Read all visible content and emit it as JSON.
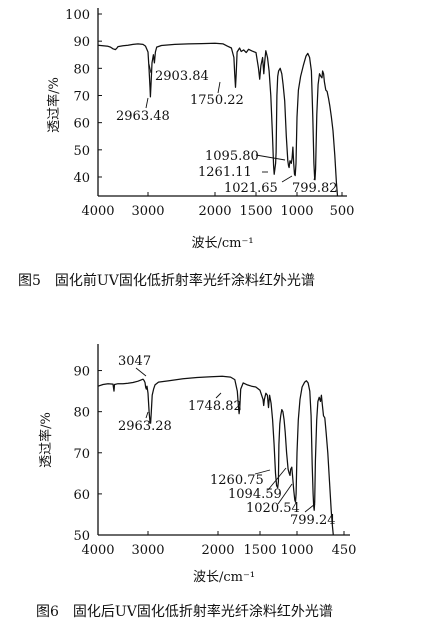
{
  "chart_data": [
    {
      "type": "line",
      "caption": "图5　固化前UV固化低折射率光纤涂料红外光谱",
      "xlabel": "波长/cm⁻¹",
      "ylabel": "透过率/%",
      "xlim": [
        4000,
        400
      ],
      "ylim": [
        33,
        100
      ],
      "x_ticks": [
        4000,
        3000,
        2000,
        1500,
        1000,
        500
      ],
      "x_tick_labels": [
        "4000",
        "3000",
        "2000",
        "1500",
        "1000",
        "500"
      ],
      "y_ticks": [
        40,
        50,
        60,
        70,
        80,
        90,
        100
      ],
      "series": [
        {
          "points": [
            [
              4000,
              88.5
            ],
            [
              3900,
              88.3
            ],
            [
              3800,
              88.1
            ],
            [
              3750,
              87.8
            ],
            [
              3700,
              87.2
            ],
            [
              3650,
              86.9
            ],
            [
              3620,
              87.5
            ],
            [
              3600,
              88
            ],
            [
              3500,
              88.3
            ],
            [
              3400,
              88.5
            ],
            [
              3300,
              88.8
            ],
            [
              3200,
              89
            ],
            [
              3100,
              88.8
            ],
            [
              3050,
              88.2
            ],
            [
              3000,
              86
            ],
            [
              2985,
              80
            ],
            [
              2970,
              73
            ],
            [
              2963.48,
              69.5
            ],
            [
              2955,
              74
            ],
            [
              2940,
              82
            ],
            [
              2920,
              85
            ],
            [
              2903.84,
              82
            ],
            [
              2890,
              86
            ],
            [
              2870,
              87.8
            ],
            [
              2800,
              88.4
            ],
            [
              2600,
              88.8
            ],
            [
              2400,
              89
            ],
            [
              2200,
              89.1
            ],
            [
              2000,
              89.2
            ],
            [
              1900,
              89
            ],
            [
              1850,
              88.2
            ],
            [
              1800,
              87.5
            ],
            [
              1770,
              84
            ],
            [
              1760,
              78
            ],
            [
              1750.22,
              73
            ],
            [
              1742,
              78
            ],
            [
              1730,
              86
            ],
            [
              1700,
              87.5
            ],
            [
              1680,
              86.2
            ],
            [
              1650,
              86.8
            ],
            [
              1620,
              85.8
            ],
            [
              1590,
              87
            ],
            [
              1550,
              86.4
            ],
            [
              1500,
              85.8
            ],
            [
              1470,
              80
            ],
            [
              1455,
              76
            ],
            [
              1440,
              81
            ],
            [
              1420,
              84
            ],
            [
              1405,
              78
            ],
            [
              1395,
              82
            ],
            [
              1380,
              86.5
            ],
            [
              1360,
              84
            ],
            [
              1340,
              79
            ],
            [
              1320,
              70
            ],
            [
              1300,
              56
            ],
            [
              1285,
              44
            ],
            [
              1278,
              41
            ],
            [
              1270,
              43
            ],
            [
              1261.11,
              45
            ],
            [
              1255,
              49
            ],
            [
              1245,
              70
            ],
            [
              1235,
              77
            ],
            [
              1225,
              79
            ],
            [
              1205,
              80
            ],
            [
              1185,
              78
            ],
            [
              1170,
              74
            ],
            [
              1150,
              68
            ],
            [
              1130,
              55
            ],
            [
              1112,
              46
            ],
            [
              1103,
              44
            ],
            [
              1095.8,
              43.5
            ],
            [
              1085,
              46
            ],
            [
              1070,
              45
            ],
            [
              1060,
              47
            ],
            [
              1050,
              51
            ],
            [
              1040,
              45
            ],
            [
              1030,
              41
            ],
            [
              1021.65,
              40.5
            ],
            [
              1012,
              45
            ],
            [
              1000,
              62
            ],
            [
              985,
              72
            ],
            [
              960,
              77
            ],
            [
              930,
              81
            ],
            [
              900,
              84.5
            ],
            [
              880,
              85.5
            ],
            [
              860,
              84
            ],
            [
              840,
              79
            ],
            [
              825,
              62
            ],
            [
              812,
              45
            ],
            [
              804,
              40
            ],
            [
              799.82,
              39
            ],
            [
              793,
              43
            ],
            [
              780,
              63
            ],
            [
              765,
              74
            ],
            [
              750,
              78
            ],
            [
              735,
              77
            ],
            [
              722,
              76.5
            ],
            [
              715,
              79
            ],
            [
              705,
              78
            ],
            [
              695,
              75
            ],
            [
              680,
              72
            ],
            [
              665,
              71.5
            ],
            [
              650,
              69
            ],
            [
              635,
              66
            ],
            [
              618,
              62
            ],
            [
              600,
              57
            ],
            [
              580,
              48
            ],
            [
              562,
              38
            ],
            [
              550,
              33
            ]
          ]
        }
      ],
      "annotations": [
        {
          "text": "2903.84",
          "x": 2903.84,
          "y": 82
        },
        {
          "text": "2963.48",
          "x": 2963.48,
          "y": 69.5
        },
        {
          "text": "1750.22",
          "x": 1750.22,
          "y": 73
        },
        {
          "text": "1095.80",
          "x": 1095.8,
          "y": 43.5
        },
        {
          "text": "1261.11",
          "x": 1261.11,
          "y": 45
        },
        {
          "text": "1021.65",
          "x": 1021.65,
          "y": 40.5
        },
        {
          "text": "799.82",
          "x": 799.82,
          "y": 39
        }
      ]
    },
    {
      "type": "line",
      "caption": "图6　固化后UV固化低折射率光纤涂料红外光谱",
      "xlabel": "波长/cm⁻¹",
      "ylabel": "透过率/%",
      "xlim": [
        4000,
        400
      ],
      "ylim": [
        50,
        95
      ],
      "x_ticks": [
        4000,
        3000,
        2000,
        1500,
        1000,
        450
      ],
      "x_tick_labels": [
        "4000",
        "3000",
        "2000",
        "1500",
        "1000",
        "450"
      ],
      "y_ticks": [
        50,
        60,
        70,
        80,
        90
      ],
      "series": [
        {
          "points": [
            [
              4000,
              86.2
            ],
            [
              3900,
              86.6
            ],
            [
              3800,
              86.8
            ],
            [
              3700,
              86.7
            ],
            [
              3680,
              85
            ],
            [
              3670,
              86.6
            ],
            [
              3600,
              86.8
            ],
            [
              3500,
              86.8
            ],
            [
              3400,
              86.9
            ],
            [
              3300,
              87.1
            ],
            [
              3200,
              87.4
            ],
            [
              3100,
              87.9
            ],
            [
              3080,
              87.6
            ],
            [
              3060,
              87.1
            ],
            [
              3047,
              85.9
            ],
            [
              3035,
              85.5
            ],
            [
              3020,
              86.2
            ],
            [
              3000,
              84.5
            ],
            [
              2985,
              80
            ],
            [
              2972,
              77.5
            ],
            [
              2963.28,
              77.2
            ],
            [
              2955,
              79.5
            ],
            [
              2940,
              84
            ],
            [
              2920,
              85.5
            ],
            [
              2900,
              86.5
            ],
            [
              2850,
              87.2
            ],
            [
              2700,
              87.5
            ],
            [
              2500,
              88
            ],
            [
              2300,
              88.3
            ],
            [
              2100,
              88.5
            ],
            [
              1950,
              88.6
            ],
            [
              1850,
              88.4
            ],
            [
              1800,
              87.8
            ],
            [
              1770,
              85
            ],
            [
              1760,
              82
            ],
            [
              1748.82,
              79.5
            ],
            [
              1740,
              81
            ],
            [
              1730,
              85.5
            ],
            [
              1700,
              87
            ],
            [
              1650,
              86.5
            ],
            [
              1600,
              86.2
            ],
            [
              1550,
              86
            ],
            [
              1500,
              85.2
            ],
            [
              1460,
              83
            ],
            [
              1450,
              81.5
            ],
            [
              1440,
              83
            ],
            [
              1420,
              84.5
            ],
            [
              1400,
              84
            ],
            [
              1385,
              81
            ],
            [
              1370,
              84
            ],
            [
              1350,
              82
            ],
            [
              1330,
              78
            ],
            [
              1310,
              72
            ],
            [
              1290,
              65
            ],
            [
              1275,
              62
            ],
            [
              1260.75,
              61.5
            ],
            [
              1252,
              63
            ],
            [
              1245,
              72
            ],
            [
              1232,
              77
            ],
            [
              1220,
              79
            ],
            [
              1205,
              80.5
            ],
            [
              1190,
              80
            ],
            [
              1175,
              78
            ],
            [
              1160,
              75
            ],
            [
              1140,
              70
            ],
            [
              1120,
              66
            ],
            [
              1105,
              65
            ],
            [
              1094.59,
              64.5
            ],
            [
              1085,
              66
            ],
            [
              1070,
              66.5
            ],
            [
              1058,
              64
            ],
            [
              1045,
              61
            ],
            [
              1030,
              58.5
            ],
            [
              1020.54,
              58
            ],
            [
              1012,
              60
            ],
            [
              1000,
              70
            ],
            [
              985,
              78
            ],
            [
              965,
              83
            ],
            [
              940,
              86
            ],
            [
              910,
              87.2
            ],
            [
              890,
              87.5
            ],
            [
              870,
              87
            ],
            [
              850,
              85
            ],
            [
              835,
              79
            ],
            [
              822,
              67
            ],
            [
              812,
              60
            ],
            [
              805,
              57
            ],
            [
              799.24,
              56
            ],
            [
              793,
              58
            ],
            [
              785,
              68
            ],
            [
              770,
              78
            ],
            [
              755,
              82.5
            ],
            [
              740,
              83.5
            ],
            [
              725,
              82.5
            ],
            [
              715,
              84
            ],
            [
              705,
              82
            ],
            [
              690,
              79
            ],
            [
              675,
              78.5
            ],
            [
              660,
              75
            ],
            [
              640,
              70
            ],
            [
              620,
              63
            ],
            [
              600,
              56
            ],
            [
              585,
              52
            ],
            [
              575,
              50
            ]
          ]
        }
      ],
      "annotations": [
        {
          "text": "3047",
          "x": 3047,
          "y": 85.9
        },
        {
          "text": "2963.28",
          "x": 2963.28,
          "y": 77.2
        },
        {
          "text": "1748.82",
          "x": 1748.82,
          "y": 79.5
        },
        {
          "text": "1260.75",
          "x": 1260.75,
          "y": 61.5
        },
        {
          "text": "1094.59",
          "x": 1094.59,
          "y": 64.5
        },
        {
          "text": "1020.54",
          "x": 1020.54,
          "y": 58
        },
        {
          "text": "799.24",
          "x": 799.24,
          "y": 56
        }
      ]
    }
  ]
}
